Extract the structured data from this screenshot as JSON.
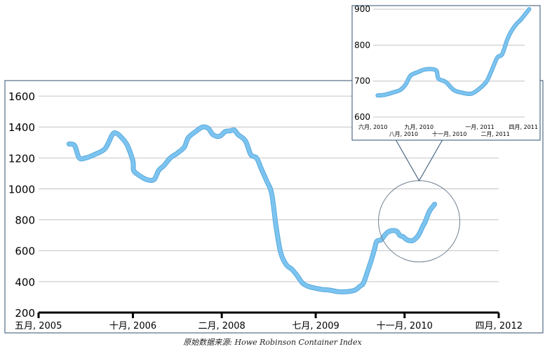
{
  "source_note": "原始数据来源: Howe Robinson Container Index",
  "chart_data": [
    {
      "type": "line",
      "title": "",
      "xlabel": "",
      "ylabel": "",
      "ylim": [
        200,
        1700
      ],
      "yticks": [
        200,
        400,
        600,
        800,
        1000,
        1200,
        1400,
        1600
      ],
      "grid": true,
      "xticks": [
        {
          "x": "2005-05",
          "label": "五月, 2005"
        },
        {
          "x": "2006-10",
          "label": "十月, 2006"
        },
        {
          "x": "2008-02",
          "label": "二月, 2008"
        },
        {
          "x": "2009-07",
          "label": "七月, 2009"
        },
        {
          "x": "2010-11",
          "label": "十一月, 2010"
        },
        {
          "x": "2012-04",
          "label": "四月, 2012"
        }
      ],
      "series": [
        {
          "color": "#7cc4f0",
          "points": [
            {
              "x": "2005-10-15",
              "y": 1290
            },
            {
              "x": "2005-11-15",
              "y": 1280
            },
            {
              "x": "2005-12-10",
              "y": 1200
            },
            {
              "x": "2006-01-15",
              "y": 1200
            },
            {
              "x": "2006-03-01",
              "y": 1220
            },
            {
              "x": "2006-05-01",
              "y": 1260
            },
            {
              "x": "2006-06-10",
              "y": 1350
            },
            {
              "x": "2006-07-01",
              "y": 1360
            },
            {
              "x": "2006-08-01",
              "y": 1330
            },
            {
              "x": "2006-09-01",
              "y": 1280
            },
            {
              "x": "2006-10-01",
              "y": 1180
            },
            {
              "x": "2006-10-05",
              "y": 1120
            },
            {
              "x": "2006-11-01",
              "y": 1090
            },
            {
              "x": "2006-12-15",
              "y": 1060
            },
            {
              "x": "2007-01-25",
              "y": 1060
            },
            {
              "x": "2007-02-20",
              "y": 1120
            },
            {
              "x": "2007-03-20",
              "y": 1150
            },
            {
              "x": "2007-04-25",
              "y": 1200
            },
            {
              "x": "2007-06-01",
              "y": 1230
            },
            {
              "x": "2007-07-10",
              "y": 1270
            },
            {
              "x": "2007-08-01",
              "y": 1330
            },
            {
              "x": "2007-09-10",
              "y": 1370
            },
            {
              "x": "2007-10-20",
              "y": 1400
            },
            {
              "x": "2007-11-20",
              "y": 1390
            },
            {
              "x": "2007-12-15",
              "y": 1350
            },
            {
              "x": "2008-01-20",
              "y": 1340
            },
            {
              "x": "2008-02-20",
              "y": 1370
            },
            {
              "x": "2008-03-20",
              "y": 1375
            },
            {
              "x": "2008-04-10",
              "y": 1380
            },
            {
              "x": "2008-05-01",
              "y": 1350
            },
            {
              "x": "2008-06-10",
              "y": 1310
            },
            {
              "x": "2008-07-10",
              "y": 1220
            },
            {
              "x": "2008-08-10",
              "y": 1200
            },
            {
              "x": "2008-09-05",
              "y": 1130
            },
            {
              "x": "2008-10-05",
              "y": 1050
            },
            {
              "x": "2008-11-01",
              "y": 970
            },
            {
              "x": "2008-11-25",
              "y": 760
            },
            {
              "x": "2008-12-20",
              "y": 590
            },
            {
              "x": "2009-01-20",
              "y": 510
            },
            {
              "x": "2009-02-20",
              "y": 480
            },
            {
              "x": "2009-03-20",
              "y": 440
            },
            {
              "x": "2009-04-20",
              "y": 390
            },
            {
              "x": "2009-05-20",
              "y": 370
            },
            {
              "x": "2009-06-20",
              "y": 360
            },
            {
              "x": "2009-08-01",
              "y": 350
            },
            {
              "x": "2009-09-15",
              "y": 345
            },
            {
              "x": "2009-11-01",
              "y": 335
            },
            {
              "x": "2009-12-20",
              "y": 335
            },
            {
              "x": "2010-02-01",
              "y": 345
            },
            {
              "x": "2010-03-01",
              "y": 370
            },
            {
              "x": "2010-03-20",
              "y": 390
            },
            {
              "x": "2010-04-10",
              "y": 460
            },
            {
              "x": "2010-04-30",
              "y": 530
            },
            {
              "x": "2010-05-20",
              "y": 610
            },
            {
              "x": "2010-06-01",
              "y": 660
            },
            {
              "x": "2010-06-25",
              "y": 670
            },
            {
              "x": "2010-07-15",
              "y": 700
            },
            {
              "x": "2010-08-01",
              "y": 720
            },
            {
              "x": "2010-08-25",
              "y": 730
            },
            {
              "x": "2010-09-20",
              "y": 725
            },
            {
              "x": "2010-10-05",
              "y": 700
            },
            {
              "x": "2010-10-25",
              "y": 690
            },
            {
              "x": "2010-11-15",
              "y": 670
            },
            {
              "x": "2010-12-15",
              "y": 665
            },
            {
              "x": "2011-01-10",
              "y": 690
            },
            {
              "x": "2011-01-25",
              "y": 720
            },
            {
              "x": "2011-02-10",
              "y": 760
            },
            {
              "x": "2011-02-20",
              "y": 780
            },
            {
              "x": "2011-03-05",
              "y": 820
            },
            {
              "x": "2011-03-20",
              "y": 860
            },
            {
              "x": "2011-04-15",
              "y": 900
            }
          ]
        }
      ],
      "annotation": {
        "type": "circle",
        "center": {
          "x": "2011-01-20",
          "y": 790
        }
      }
    },
    {
      "type": "line",
      "title": "",
      "xlabel": "",
      "ylabel": "",
      "ylim": [
        600,
        910
      ],
      "yticks": [
        600,
        700,
        800,
        900
      ],
      "grid": true,
      "xticks": [
        {
          "x": "2010-06-01",
          "label": "六月, 2010",
          "row": 1
        },
        {
          "x": "2010-08-01",
          "label": "八月, 2010",
          "row": 2
        },
        {
          "x": "2010-09-01",
          "label": "九月, 2010",
          "row": 1
        },
        {
          "x": "2010-11-01",
          "label": "十一月, 2010",
          "row": 2
        },
        {
          "x": "2011-01-01",
          "label": "一月, 2011",
          "row": 1
        },
        {
          "x": "2011-02-01",
          "label": "二月, 2011",
          "row": 2
        },
        {
          "x": "2011-04-01",
          "label": "四月, 2011",
          "row": 1
        }
      ],
      "series": [
        {
          "color": "#7cc4f0",
          "points": [
            {
              "x": "2010-06-10",
              "y": 660
            },
            {
              "x": "2010-06-25",
              "y": 662
            },
            {
              "x": "2010-07-10",
              "y": 668
            },
            {
              "x": "2010-07-25",
              "y": 675
            },
            {
              "x": "2010-08-05",
              "y": 690
            },
            {
              "x": "2010-08-15",
              "y": 715
            },
            {
              "x": "2010-08-30",
              "y": 725
            },
            {
              "x": "2010-09-15",
              "y": 733
            },
            {
              "x": "2010-10-05",
              "y": 730
            },
            {
              "x": "2010-10-10",
              "y": 707
            },
            {
              "x": "2010-10-25",
              "y": 697
            },
            {
              "x": "2010-11-10",
              "y": 675
            },
            {
              "x": "2010-11-25",
              "y": 668
            },
            {
              "x": "2010-12-15",
              "y": 665
            },
            {
              "x": "2011-01-01",
              "y": 680
            },
            {
              "x": "2011-01-15",
              "y": 700
            },
            {
              "x": "2011-01-25",
              "y": 730
            },
            {
              "x": "2011-02-05",
              "y": 765
            },
            {
              "x": "2011-02-15",
              "y": 775
            },
            {
              "x": "2011-02-25",
              "y": 815
            },
            {
              "x": "2011-03-05",
              "y": 838
            },
            {
              "x": "2011-03-15",
              "y": 858
            },
            {
              "x": "2011-03-25",
              "y": 872
            },
            {
              "x": "2011-04-10",
              "y": 900
            }
          ]
        }
      ]
    }
  ]
}
